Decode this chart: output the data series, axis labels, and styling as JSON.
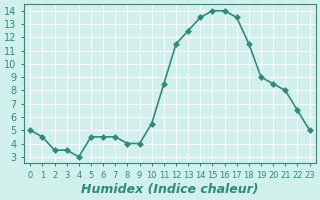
{
  "x": [
    0,
    1,
    2,
    3,
    4,
    5,
    6,
    7,
    8,
    9,
    10,
    11,
    12,
    13,
    14,
    15,
    16,
    17,
    18,
    19,
    20,
    21,
    22,
    23
  ],
  "y": [
    5.0,
    4.5,
    3.5,
    3.5,
    3.0,
    4.5,
    4.5,
    4.5,
    4.0,
    4.0,
    5.5,
    8.5,
    11.5,
    12.5,
    13.5,
    14.0,
    14.0,
    13.5,
    11.5,
    9.0,
    8.5,
    8.0,
    6.5,
    5.0
  ],
  "line_color": "#2e8b7a",
  "marker": "D",
  "marker_size": 3,
  "line_width": 1.2,
  "xlabel": "Humidex (Indice chaleur)",
  "xlabel_fontsize": 9,
  "background_color": "#d0f0ec",
  "grid_color": "#ffffff",
  "ylim": [
    2.5,
    14.5
  ],
  "xlim": [
    -0.5,
    23.5
  ],
  "yticks": [
    3,
    4,
    5,
    6,
    7,
    8,
    9,
    10,
    11,
    12,
    13,
    14
  ],
  "xtick_labels": [
    "0",
    "1",
    "2",
    "3",
    "4",
    "5",
    "6",
    "7",
    "8",
    "9",
    "10",
    "11",
    "12",
    "13",
    "14",
    "15",
    "16",
    "17",
    "18",
    "19",
    "20",
    "21",
    "22",
    "23"
  ],
  "tick_fontsize": 7,
  "tick_color": "#2e8b7a"
}
